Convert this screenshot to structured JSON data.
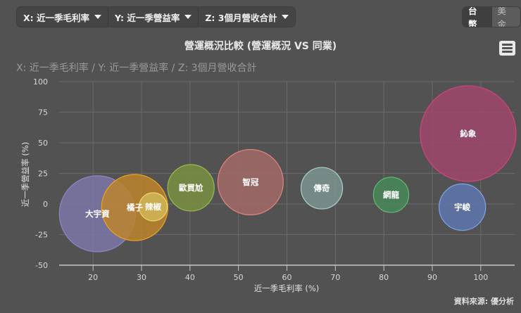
{
  "controls": {
    "x_select": {
      "label": "X: 近一季毛利率"
    },
    "y_select": {
      "label": "Y: 近一季營益率"
    },
    "z_select": {
      "label": "Z: 3個月營收合計"
    },
    "currency": {
      "options": [
        "台幣",
        "美金"
      ],
      "selected": "台幣"
    }
  },
  "menu_icon": "hamburger-icon",
  "source": "資料來源: 優分析",
  "chart_data": {
    "type": "bubble",
    "title": "營運概況比較 (營運概況 VS 同業)",
    "subtitle": "X: 近一季毛利率 / Y: 近一季營益率 / Z: 3個月營收合計",
    "xlabel": "近一季毛利率 (%)",
    "ylabel": "近一季營益率 (%)",
    "xlim": [
      13,
      107
    ],
    "ylim": [
      -50,
      100
    ],
    "xticks": [
      20,
      30,
      40,
      50,
      60,
      70,
      80,
      90,
      100
    ],
    "yticks": [
      100,
      75,
      50,
      25,
      0,
      -25,
      -50
    ],
    "grid": true,
    "legend": false,
    "series": [
      {
        "name": "大宇資",
        "x": 20.9,
        "y": -8.0,
        "z": 29.2,
        "fill": "#7d78aa",
        "stroke": "#8d88c4"
      },
      {
        "name": "橘子",
        "x": 28.6,
        "y": -2.9,
        "z": 22.1,
        "fill": "#c0852a",
        "stroke": "#eea41e"
      },
      {
        "name": "辣椒",
        "x": 32.4,
        "y": -2.3,
        "z": 4.0,
        "fill": "#d2b85a",
        "stroke": "#f0d470"
      },
      {
        "name": "歐買尬",
        "x": 40.2,
        "y": 13.2,
        "z": 10.9,
        "fill": "#7a9140",
        "stroke": "#9cbc4a"
      },
      {
        "name": "智冠",
        "x": 52.5,
        "y": 17.8,
        "z": 21.6,
        "fill": "#a56a68",
        "stroke": "#e2837e"
      },
      {
        "name": "傳奇",
        "x": 67.2,
        "y": 12.9,
        "z": 8.7,
        "fill": "#7c9692",
        "stroke": "#a8d2ca"
      },
      {
        "name": "網龍",
        "x": 81.5,
        "y": 7.5,
        "z": 6.3,
        "fill": "#488a58",
        "stroke": "#5ebc70"
      },
      {
        "name": "鈊象",
        "x": 97.4,
        "y": 57.5,
        "z": 46.2,
        "fill": "#a0466a",
        "stroke": "#d4447c"
      },
      {
        "name": "宇峻",
        "x": 96.2,
        "y": -2.6,
        "z": 10.9,
        "fill": "#5e78b0",
        "stroke": "#80a2ec"
      }
    ]
  }
}
